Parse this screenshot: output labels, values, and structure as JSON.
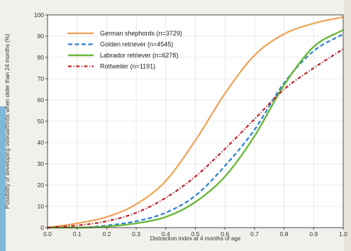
{
  "chart_data": {
    "type": "line",
    "xlabel": "Distraction index at 4 months of age",
    "ylabel": "Possibility of developing osteoarthritis when older than 24 months (%)",
    "xlim": [
      0.0,
      1.0
    ],
    "ylim": [
      0,
      100
    ],
    "x_ticks": [
      "0.0",
      "0.1",
      "0.2",
      "0.3",
      "0.4",
      "0.5",
      "0.6",
      "0.7",
      "0.8",
      "0.9",
      "1.0"
    ],
    "y_ticks": [
      "0",
      "10",
      "20",
      "30",
      "40",
      "50",
      "60",
      "70",
      "80",
      "90",
      "100"
    ],
    "grid": true,
    "legend_position": "top-left",
    "x": [
      0.0,
      0.1,
      0.2,
      0.3,
      0.4,
      0.5,
      0.6,
      0.7,
      0.8,
      0.9,
      1.0
    ],
    "series": [
      {
        "name": "German shephords (n=3729)",
        "color": "#f0a050",
        "style": "dotted",
        "values": [
          0,
          2,
          5,
          11,
          22,
          41,
          63,
          81,
          91,
          96,
          99
        ]
      },
      {
        "name": "Golden retriever (n=4545)",
        "color": "#2a7fd0",
        "style": "dashed",
        "values": [
          0,
          0,
          1,
          3,
          7,
          15,
          29,
          46,
          68,
          83,
          91
        ]
      },
      {
        "name": "Labrador retriever (n=6278)",
        "color": "#6cb83a",
        "style": "solid",
        "values": [
          0,
          0,
          0.5,
          2,
          5,
          12,
          24,
          43,
          67,
          85,
          93
        ]
      },
      {
        "name": "Rottweiler (n=1191)",
        "color": "#c0202a",
        "style": "dash-dot",
        "values": [
          0,
          1,
          3,
          7,
          14,
          24,
          37,
          51,
          65,
          75,
          84
        ]
      }
    ]
  }
}
